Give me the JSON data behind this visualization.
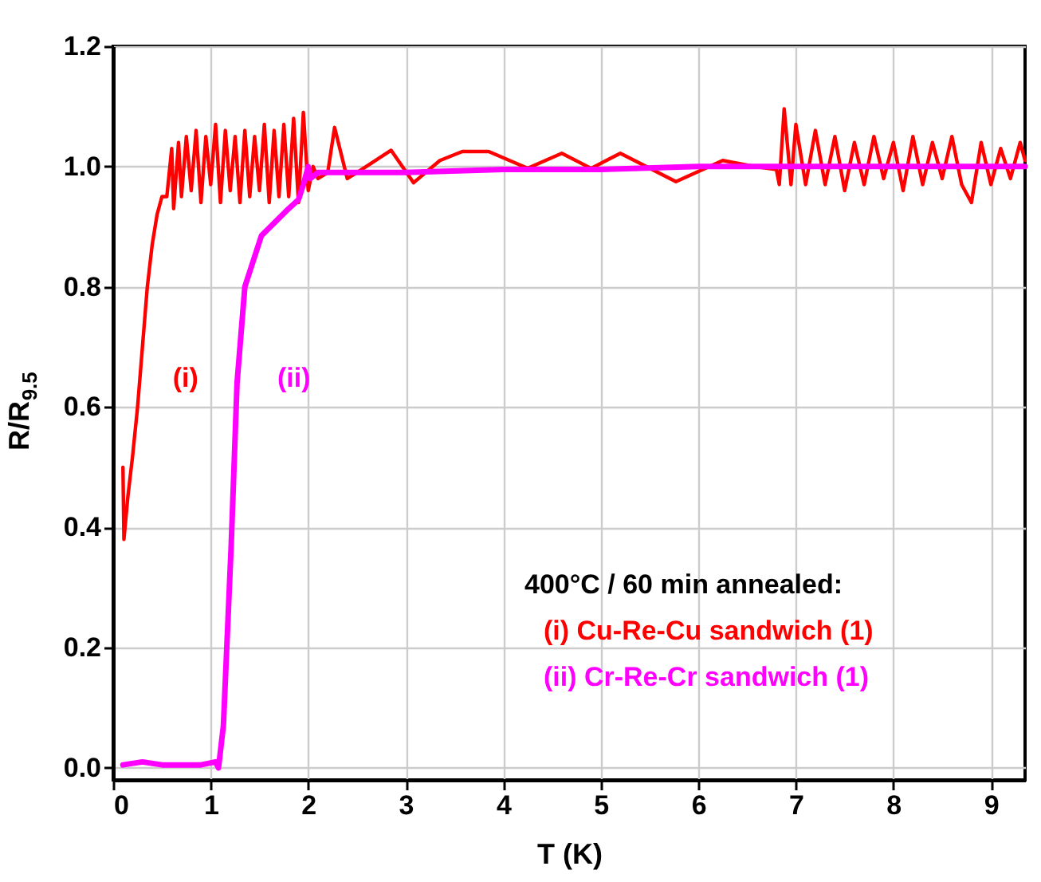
{
  "chart_data": {
    "type": "line",
    "xlabel": "T (K)",
    "ylabel": "R/R$_{9.5}$",
    "legend_title": "400°C / 60 min annealed:",
    "legend": "bottom right",
    "grid": true,
    "marker": "none",
    "line_style": "solid",
    "xlim": [
      0,
      9.35
    ],
    "ylim": [
      -0.02,
      1.2
    ],
    "xticks": [
      0,
      1,
      2,
      3,
      4,
      5,
      6,
      7,
      8,
      9
    ],
    "yticks": [
      {
        "value": 0,
        "label": "0.0"
      },
      0.2,
      0.4,
      0.6,
      0.8,
      {
        "value": 1,
        "label": "1.0"
      },
      1.2
    ],
    "annotations": [
      "(i)",
      "(ii)"
    ],
    "series": [
      {
        "name": "(i) Cu-Re-Cu sandwich (1)",
        "color": "#ff0000",
        "x": [
          0.1,
          0.11,
          0.15,
          0.2,
          0.25,
          0.3,
          0.35,
          0.4,
          0.45,
          0.5,
          0.55,
          0.6,
          0.62,
          0.67,
          0.7,
          0.75,
          0.8,
          0.85,
          0.9,
          0.95,
          1.0,
          1.05,
          1.1,
          1.15,
          1.2,
          1.25,
          1.3,
          1.35,
          1.4,
          1.45,
          1.5,
          1.55,
          1.6,
          1.65,
          1.7,
          1.75,
          1.8,
          1.85,
          1.9,
          1.95,
          2.0,
          2.05,
          2.1,
          2.2,
          2.27,
          2.4,
          2.5,
          2.85,
          3.08,
          3.35,
          3.58,
          3.85,
          4.25,
          4.6,
          4.9,
          5.2,
          5.77,
          6.25,
          6.58,
          6.8,
          6.83,
          6.88,
          6.95,
          7.0,
          7.1,
          7.2,
          7.3,
          7.4,
          7.5,
          7.6,
          7.7,
          7.8,
          7.9,
          8.0,
          8.1,
          8.2,
          8.3,
          8.4,
          8.5,
          8.6,
          8.7,
          8.8,
          8.9,
          9.0,
          9.1,
          9.2,
          9.3,
          9.35
        ],
        "values": [
          0.5,
          0.38,
          0.45,
          0.52,
          0.6,
          0.7,
          0.8,
          0.87,
          0.92,
          0.95,
          0.95,
          1.03,
          0.93,
          1.04,
          0.95,
          1.05,
          0.96,
          1.06,
          0.94,
          1.05,
          0.97,
          1.07,
          0.94,
          1.06,
          0.96,
          1.05,
          0.94,
          1.06,
          0.95,
          1.05,
          0.96,
          1.07,
          0.94,
          1.06,
          0.95,
          1.07,
          0.95,
          1.08,
          0.94,
          1.09,
          0.96,
          1.0,
          0.98,
          0.99,
          1.065,
          0.98,
          0.99,
          1.027,
          0.973,
          1.01,
          1.025,
          1.025,
          0.997,
          1.022,
          0.997,
          1.022,
          0.975,
          1.01,
          1.0,
          0.995,
          0.97,
          1.096,
          0.97,
          1.07,
          0.97,
          1.06,
          0.97,
          1.05,
          0.96,
          1.04,
          0.97,
          1.05,
          0.98,
          1.04,
          0.96,
          1.05,
          0.97,
          1.04,
          0.98,
          1.05,
          0.97,
          0.94,
          1.04,
          0.97,
          1.03,
          0.98,
          1.04,
          1.01
        ]
      },
      {
        "name": "(ii) Cr-Re-Cr sandwich (1)",
        "color": "#ff00ff",
        "x": [
          0.1,
          0.3,
          0.5,
          0.7,
          0.9,
          1.05,
          1.08,
          1.13,
          1.21,
          1.27,
          1.35,
          1.52,
          1.8,
          1.9,
          1.95,
          2.0,
          2.02,
          2.1,
          3.0,
          4.0,
          5.0,
          6.0,
          7.0,
          7.5,
          8.0,
          8.5,
          9.0,
          9.35
        ],
        "values": [
          0.005,
          0.01,
          0.005,
          0.005,
          0.005,
          0.01,
          0.0,
          0.07,
          0.37,
          0.64,
          0.8,
          0.885,
          0.93,
          0.945,
          0.97,
          1.0,
          0.98,
          0.99,
          0.99,
          0.995,
          0.995,
          1.0,
          1.0,
          1.0,
          1.0,
          1.0,
          1.0,
          1.0
        ]
      }
    ]
  }
}
